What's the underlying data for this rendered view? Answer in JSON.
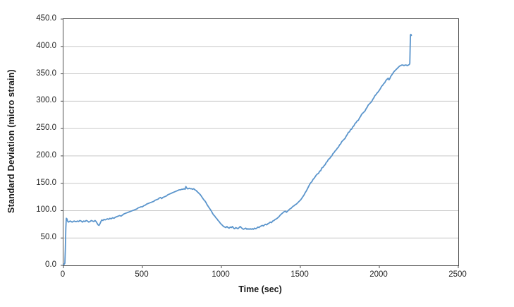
{
  "chart_data": {
    "type": "line",
    "title": "",
    "xlabel": "Time (sec)",
    "ylabel": "Standard Deviation (micro strain)",
    "xlim": [
      0,
      2500
    ],
    "ylim": [
      0,
      450
    ],
    "x_ticks": [
      0,
      500,
      1000,
      1500,
      2000,
      2500
    ],
    "x_tick_labels": [
      "0",
      "500",
      "1000",
      "1500",
      "2000",
      "2500"
    ],
    "y_ticks": [
      0,
      50,
      100,
      150,
      200,
      250,
      300,
      350,
      400,
      450
    ],
    "y_tick_labels": [
      "0.0",
      "50.0",
      "100.0",
      "150.0",
      "200.0",
      "250.0",
      "300.0",
      "350.0",
      "400.0",
      "450.0"
    ],
    "grid": "horizontal-only",
    "legend": "none",
    "line_color": "#5B95CC",
    "gridline_color": "#C9C9C9",
    "axis_color": "#4D4D4D",
    "text_color": "#262626",
    "series": [
      {
        "points": [
          [
            0,
            2
          ],
          [
            5,
            2
          ],
          [
            9,
            4
          ],
          [
            12,
            30
          ],
          [
            15,
            68
          ],
          [
            18,
            86
          ],
          [
            22,
            85
          ],
          [
            26,
            81
          ],
          [
            31,
            79
          ],
          [
            37,
            80
          ],
          [
            43,
            81
          ],
          [
            49,
            80
          ],
          [
            55,
            79
          ],
          [
            61,
            80
          ],
          [
            68,
            81
          ],
          [
            75,
            80
          ],
          [
            82,
            80
          ],
          [
            89,
            81
          ],
          [
            96,
            80
          ],
          [
            104,
            82
          ],
          [
            112,
            81
          ],
          [
            120,
            79
          ],
          [
            128,
            81
          ],
          [
            136,
            80
          ],
          [
            144,
            82
          ],
          [
            152,
            81
          ],
          [
            160,
            79
          ],
          [
            168,
            80
          ],
          [
            176,
            82
          ],
          [
            184,
            81
          ],
          [
            192,
            80
          ],
          [
            200,
            82
          ],
          [
            207,
            80
          ],
          [
            213,
            77
          ],
          [
            219,
            74
          ],
          [
            225,
            73
          ],
          [
            231,
            76
          ],
          [
            237,
            80
          ],
          [
            243,
            83
          ],
          [
            250,
            82
          ],
          [
            257,
            84
          ],
          [
            264,
            83
          ],
          [
            271,
            84
          ],
          [
            278,
            85
          ],
          [
            286,
            84
          ],
          [
            294,
            86
          ],
          [
            302,
            85
          ],
          [
            311,
            87
          ],
          [
            320,
            86
          ],
          [
            329,
            88
          ],
          [
            338,
            89
          ],
          [
            347,
            90
          ],
          [
            356,
            91
          ],
          [
            365,
            90
          ],
          [
            374,
            92
          ],
          [
            383,
            94
          ],
          [
            392,
            95
          ],
          [
            401,
            96
          ],
          [
            410,
            97
          ],
          [
            419,
            98
          ],
          [
            428,
            99
          ],
          [
            437,
            100
          ],
          [
            446,
            101
          ],
          [
            455,
            102
          ],
          [
            464,
            103
          ],
          [
            473,
            105
          ],
          [
            482,
            106
          ],
          [
            491,
            107
          ],
          [
            500,
            107
          ],
          [
            509,
            109
          ],
          [
            518,
            110
          ],
          [
            527,
            112
          ],
          [
            536,
            113
          ],
          [
            545,
            114
          ],
          [
            554,
            115
          ],
          [
            563,
            116
          ],
          [
            572,
            117
          ],
          [
            581,
            119
          ],
          [
            590,
            120
          ],
          [
            599,
            121
          ],
          [
            607,
            123
          ],
          [
            615,
            124
          ],
          [
            622,
            122
          ],
          [
            629,
            124
          ],
          [
            637,
            125
          ],
          [
            645,
            126
          ],
          [
            653,
            127
          ],
          [
            661,
            129
          ],
          [
            669,
            130
          ],
          [
            677,
            131
          ],
          [
            685,
            132
          ],
          [
            693,
            133
          ],
          [
            701,
            134
          ],
          [
            709,
            135
          ],
          [
            717,
            136
          ],
          [
            725,
            137
          ],
          [
            733,
            138
          ],
          [
            741,
            138
          ],
          [
            749,
            139
          ],
          [
            757,
            139
          ],
          [
            764,
            140
          ],
          [
            770,
            139
          ],
          [
            775,
            144
          ],
          [
            779,
            142
          ],
          [
            784,
            140
          ],
          [
            790,
            140
          ],
          [
            797,
            141
          ],
          [
            804,
            140
          ],
          [
            811,
            140
          ],
          [
            818,
            139
          ],
          [
            825,
            140
          ],
          [
            832,
            138
          ],
          [
            839,
            137
          ],
          [
            846,
            135
          ],
          [
            853,
            133
          ],
          [
            860,
            131
          ],
          [
            867,
            129
          ],
          [
            874,
            126
          ],
          [
            881,
            123
          ],
          [
            888,
            120
          ],
          [
            895,
            118
          ],
          [
            902,
            115
          ],
          [
            909,
            111
          ],
          [
            916,
            108
          ],
          [
            923,
            105
          ],
          [
            930,
            102
          ],
          [
            937,
            99
          ],
          [
            944,
            95
          ],
          [
            951,
            92
          ],
          [
            958,
            90
          ],
          [
            965,
            87
          ],
          [
            972,
            85
          ],
          [
            979,
            82
          ],
          [
            986,
            80
          ],
          [
            993,
            77
          ],
          [
            1000,
            75
          ],
          [
            1007,
            73
          ],
          [
            1014,
            71
          ],
          [
            1021,
            70
          ],
          [
            1028,
            69
          ],
          [
            1035,
            71
          ],
          [
            1042,
            69
          ],
          [
            1049,
            68
          ],
          [
            1056,
            70
          ],
          [
            1063,
            69
          ],
          [
            1070,
            71
          ],
          [
            1077,
            68
          ],
          [
            1084,
            67
          ],
          [
            1091,
            69
          ],
          [
            1098,
            68
          ],
          [
            1105,
            67
          ],
          [
            1112,
            69
          ],
          [
            1119,
            71
          ],
          [
            1126,
            69
          ],
          [
            1133,
            67
          ],
          [
            1140,
            66
          ],
          [
            1147,
            67
          ],
          [
            1154,
            68
          ],
          [
            1161,
            66
          ],
          [
            1168,
            67
          ],
          [
            1175,
            66
          ],
          [
            1182,
            67
          ],
          [
            1189,
            66
          ],
          [
            1196,
            67
          ],
          [
            1203,
            66
          ],
          [
            1210,
            68
          ],
          [
            1217,
            67
          ],
          [
            1224,
            68
          ],
          [
            1231,
            70
          ],
          [
            1238,
            69
          ],
          [
            1245,
            71
          ],
          [
            1252,
            72
          ],
          [
            1259,
            73
          ],
          [
            1266,
            72
          ],
          [
            1273,
            74
          ],
          [
            1280,
            75
          ],
          [
            1287,
            74
          ],
          [
            1294,
            76
          ],
          [
            1301,
            77
          ],
          [
            1309,
            79
          ],
          [
            1317,
            78
          ],
          [
            1325,
            81
          ],
          [
            1333,
            82
          ],
          [
            1341,
            84
          ],
          [
            1349,
            85
          ],
          [
            1357,
            87
          ],
          [
            1365,
            89
          ],
          [
            1373,
            92
          ],
          [
            1381,
            94
          ],
          [
            1389,
            96
          ],
          [
            1397,
            98
          ],
          [
            1405,
            99
          ],
          [
            1412,
            97
          ],
          [
            1419,
            99
          ],
          [
            1426,
            101
          ],
          [
            1433,
            103
          ],
          [
            1440,
            104
          ],
          [
            1447,
            106
          ],
          [
            1454,
            108
          ],
          [
            1461,
            109
          ],
          [
            1468,
            111
          ],
          [
            1475,
            112
          ],
          [
            1482,
            114
          ],
          [
            1489,
            116
          ],
          [
            1496,
            118
          ],
          [
            1503,
            120
          ],
          [
            1510,
            123
          ],
          [
            1517,
            126
          ],
          [
            1524,
            129
          ],
          [
            1531,
            133
          ],
          [
            1538,
            136
          ],
          [
            1545,
            140
          ],
          [
            1552,
            144
          ],
          [
            1559,
            148
          ],
          [
            1566,
            151
          ],
          [
            1573,
            153
          ],
          [
            1580,
            157
          ],
          [
            1587,
            159
          ],
          [
            1594,
            162
          ],
          [
            1601,
            165
          ],
          [
            1608,
            167
          ],
          [
            1615,
            168
          ],
          [
            1622,
            172
          ],
          [
            1629,
            173
          ],
          [
            1636,
            178
          ],
          [
            1643,
            179
          ],
          [
            1650,
            182
          ],
          [
            1657,
            184
          ],
          [
            1664,
            188
          ],
          [
            1671,
            190
          ],
          [
            1678,
            194
          ],
          [
            1685,
            195
          ],
          [
            1692,
            198
          ],
          [
            1699,
            200
          ],
          [
            1706,
            204
          ],
          [
            1713,
            206
          ],
          [
            1720,
            209
          ],
          [
            1727,
            211
          ],
          [
            1734,
            214
          ],
          [
            1741,
            216
          ],
          [
            1748,
            220
          ],
          [
            1755,
            222
          ],
          [
            1762,
            226
          ],
          [
            1769,
            228
          ],
          [
            1776,
            230
          ],
          [
            1783,
            232
          ],
          [
            1790,
            236
          ],
          [
            1797,
            239
          ],
          [
            1804,
            243
          ],
          [
            1811,
            244
          ],
          [
            1818,
            248
          ],
          [
            1825,
            249
          ],
          [
            1832,
            253
          ],
          [
            1839,
            255
          ],
          [
            1846,
            259
          ],
          [
            1853,
            261
          ],
          [
            1860,
            264
          ],
          [
            1867,
            265
          ],
          [
            1874,
            269
          ],
          [
            1881,
            272
          ],
          [
            1888,
            276
          ],
          [
            1895,
            278
          ],
          [
            1902,
            280
          ],
          [
            1909,
            282
          ],
          [
            1916,
            286
          ],
          [
            1923,
            289
          ],
          [
            1930,
            293
          ],
          [
            1937,
            295
          ],
          [
            1944,
            297
          ],
          [
            1951,
            299
          ],
          [
            1958,
            303
          ],
          [
            1965,
            306
          ],
          [
            1972,
            310
          ],
          [
            1979,
            312
          ],
          [
            1986,
            315
          ],
          [
            1993,
            317
          ],
          [
            2000,
            320
          ],
          [
            2007,
            323
          ],
          [
            2014,
            327
          ],
          [
            2021,
            329
          ],
          [
            2028,
            332
          ],
          [
            2035,
            334
          ],
          [
            2042,
            338
          ],
          [
            2049,
            340
          ],
          [
            2056,
            342
          ],
          [
            2061,
            339
          ],
          [
            2066,
            341
          ],
          [
            2072,
            345
          ],
          [
            2079,
            348
          ],
          [
            2086,
            351
          ],
          [
            2093,
            354
          ],
          [
            2100,
            356
          ],
          [
            2107,
            358
          ],
          [
            2114,
            360
          ],
          [
            2121,
            362
          ],
          [
            2128,
            364
          ],
          [
            2135,
            365
          ],
          [
            2142,
            366
          ],
          [
            2149,
            366
          ],
          [
            2156,
            365
          ],
          [
            2163,
            366
          ],
          [
            2170,
            366
          ],
          [
            2177,
            365
          ],
          [
            2184,
            366
          ],
          [
            2190,
            367
          ],
          [
            2193,
            369
          ],
          [
            2195,
            396
          ],
          [
            2197,
            421
          ],
          [
            2200,
            422
          ],
          [
            2203,
            420
          ]
        ]
      }
    ]
  }
}
